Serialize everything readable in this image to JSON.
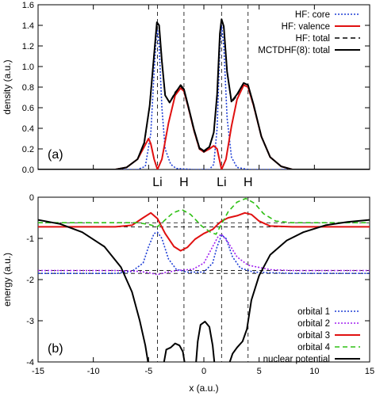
{
  "chart_data": [
    {
      "type": "line",
      "panel_label": "(a)",
      "xlabel": "",
      "ylabel": "density (a.u.)",
      "xlim": [
        -15,
        15
      ],
      "ylim": [
        0,
        1.6
      ],
      "yticks": [
        "0.0",
        "0.2",
        "0.4",
        "0.6",
        "0.8",
        "1.0",
        "1.2",
        "1.4",
        "1.6"
      ],
      "atom_labels": [
        {
          "x": -4.2,
          "text": "Li"
        },
        {
          "x": -1.8,
          "text": "H"
        },
        {
          "x": 1.6,
          "text": "Li"
        },
        {
          "x": 4.0,
          "text": "H"
        }
      ],
      "vlines": [
        -4.2,
        -1.8,
        1.6,
        4.0
      ],
      "legend_position": "top-right",
      "series": [
        {
          "name": "HF: core",
          "color": "#1f3fd6",
          "style": "dotted",
          "points": [
            [
              -15,
              0
            ],
            [
              -6,
              0
            ],
            [
              -5.3,
              0.03
            ],
            [
              -4.8,
              0.35
            ],
            [
              -4.5,
              0.95
            ],
            [
              -4.3,
              1.3
            ],
            [
              -4.2,
              1.35
            ],
            [
              -4.05,
              1.2
            ],
            [
              -3.8,
              0.6
            ],
            [
              -3.5,
              0.2
            ],
            [
              -3,
              0.05
            ],
            [
              -2.5,
              0.01
            ],
            [
              -1,
              0
            ],
            [
              0.5,
              0
            ],
            [
              0.9,
              0.05
            ],
            [
              1.2,
              0.4
            ],
            [
              1.45,
              1.2
            ],
            [
              1.6,
              1.4
            ],
            [
              1.8,
              1.2
            ],
            [
              2.1,
              0.5
            ],
            [
              2.5,
              0.12
            ],
            [
              3,
              0.02
            ],
            [
              4,
              0
            ],
            [
              15,
              0
            ]
          ]
        },
        {
          "name": "HF: valence",
          "color": "#e01010",
          "style": "solid",
          "points": [
            [
              -15,
              0
            ],
            [
              -8,
              0
            ],
            [
              -7,
              0.02
            ],
            [
              -6,
              0.1
            ],
            [
              -5.4,
              0.22
            ],
            [
              -5,
              0.3
            ],
            [
              -4.8,
              0.25
            ],
            [
              -4.5,
              0.1
            ],
            [
              -4.2,
              0
            ],
            [
              -3.8,
              0.1
            ],
            [
              -3.2,
              0.45
            ],
            [
              -2.6,
              0.72
            ],
            [
              -2.1,
              0.79
            ],
            [
              -1.8,
              0.76
            ],
            [
              -1.4,
              0.6
            ],
            [
              -0.9,
              0.38
            ],
            [
              -0.4,
              0.2
            ],
            [
              0,
              0.17
            ],
            [
              0.5,
              0.2
            ],
            [
              0.9,
              0.23
            ],
            [
              1.2,
              0.2
            ],
            [
              1.6,
              0
            ],
            [
              2,
              0.1
            ],
            [
              2.5,
              0.42
            ],
            [
              3,
              0.68
            ],
            [
              3.6,
              0.82
            ],
            [
              4,
              0.8
            ],
            [
              4.5,
              0.62
            ],
            [
              5.2,
              0.32
            ],
            [
              6,
              0.12
            ],
            [
              7,
              0.03
            ],
            [
              8,
              0
            ],
            [
              15,
              0
            ]
          ]
        },
        {
          "name": "HF: total",
          "color": "#000000",
          "style": "dashed",
          "points": [
            [
              -15,
              0
            ],
            [
              -8,
              0
            ],
            [
              -7,
              0.02
            ],
            [
              -6,
              0.1
            ],
            [
              -5.4,
              0.25
            ],
            [
              -4.9,
              0.62
            ],
            [
              -4.5,
              1.12
            ],
            [
              -4.25,
              1.42
            ],
            [
              -4.05,
              1.38
            ],
            [
              -3.8,
              1.05
            ],
            [
              -3.5,
              0.72
            ],
            [
              -3.1,
              0.65
            ],
            [
              -2.6,
              0.75
            ],
            [
              -2.1,
              0.81
            ],
            [
              -1.8,
              0.77
            ],
            [
              -1.4,
              0.6
            ],
            [
              -0.9,
              0.38
            ],
            [
              -0.4,
              0.2
            ],
            [
              0,
              0.17
            ],
            [
              0.5,
              0.22
            ],
            [
              0.9,
              0.35
            ],
            [
              1.2,
              0.72
            ],
            [
              1.45,
              1.3
            ],
            [
              1.6,
              1.45
            ],
            [
              1.8,
              1.38
            ],
            [
              2.1,
              0.95
            ],
            [
              2.5,
              0.65
            ],
            [
              3,
              0.72
            ],
            [
              3.6,
              0.84
            ],
            [
              4,
              0.82
            ],
            [
              4.5,
              0.62
            ],
            [
              5.2,
              0.32
            ],
            [
              6,
              0.12
            ],
            [
              7,
              0.03
            ],
            [
              8,
              0
            ],
            [
              15,
              0
            ]
          ]
        },
        {
          "name": "MCTDHF(8): total",
          "color": "#000000",
          "style": "solid",
          "points": [
            [
              -15,
              0
            ],
            [
              -8,
              0
            ],
            [
              -7,
              0.02
            ],
            [
              -6,
              0.1
            ],
            [
              -5.4,
              0.26
            ],
            [
              -4.9,
              0.62
            ],
            [
              -4.5,
              1.12
            ],
            [
              -4.25,
              1.43
            ],
            [
              -4.05,
              1.4
            ],
            [
              -3.8,
              1.05
            ],
            [
              -3.5,
              0.72
            ],
            [
              -3.1,
              0.65
            ],
            [
              -2.6,
              0.74
            ],
            [
              -2.1,
              0.82
            ],
            [
              -1.8,
              0.78
            ],
            [
              -1.4,
              0.61
            ],
            [
              -0.9,
              0.39
            ],
            [
              -0.4,
              0.21
            ],
            [
              0,
              0.18
            ],
            [
              0.5,
              0.22
            ],
            [
              0.9,
              0.36
            ],
            [
              1.2,
              0.73
            ],
            [
              1.45,
              1.32
            ],
            [
              1.6,
              1.46
            ],
            [
              1.8,
              1.39
            ],
            [
              2.1,
              0.95
            ],
            [
              2.5,
              0.66
            ],
            [
              3,
              0.73
            ],
            [
              3.6,
              0.84
            ],
            [
              4,
              0.82
            ],
            [
              4.5,
              0.63
            ],
            [
              5.2,
              0.32
            ],
            [
              6,
              0.12
            ],
            [
              7,
              0.03
            ],
            [
              8,
              0
            ],
            [
              15,
              0
            ]
          ]
        }
      ]
    },
    {
      "type": "line",
      "panel_label": "(b)",
      "xlabel": "x (a.u.)",
      "ylabel": "energy (a.u.)",
      "xlim": [
        -15,
        15
      ],
      "ylim": [
        -4,
        0
      ],
      "xticks": [
        "-15",
        "-10",
        "-5",
        "0",
        "5",
        "10",
        "15"
      ],
      "yticks": [
        "-4",
        "-3",
        "-2",
        "-1",
        "0"
      ],
      "vlines": [
        -4.2,
        -1.8,
        1.6,
        4.0
      ],
      "hlines": [
        -0.62,
        -0.72,
        -1.78,
        -1.85
      ],
      "legend_position": "bottom-right",
      "series": [
        {
          "name": "orbital 1",
          "color": "#1f3fd6",
          "style": "dotted",
          "points": [
            [
              -15,
              -1.85
            ],
            [
              -8,
              -1.85
            ],
            [
              -6.5,
              -1.8
            ],
            [
              -5.5,
              -1.6
            ],
            [
              -5,
              -1.2
            ],
            [
              -4.5,
              -0.88
            ],
            [
              -4.2,
              -0.85
            ],
            [
              -3.8,
              -1
            ],
            [
              -3.2,
              -1.5
            ],
            [
              -2.5,
              -1.75
            ],
            [
              -1.5,
              -1.82
            ],
            [
              0,
              -1.82
            ],
            [
              0.8,
              -1.6
            ],
            [
              1.2,
              -1.2
            ],
            [
              1.6,
              -0.92
            ],
            [
              2,
              -1
            ],
            [
              2.6,
              -1.45
            ],
            [
              3.3,
              -1.72
            ],
            [
              4.5,
              -1.82
            ],
            [
              8,
              -1.85
            ],
            [
              15,
              -1.85
            ]
          ]
        },
        {
          "name": "orbital 2",
          "color": "#a020f0",
          "style": "dotted",
          "points": [
            [
              -15,
              -1.78
            ],
            [
              -8,
              -1.78
            ],
            [
              -6,
              -1.8
            ],
            [
              -5,
              -1.83
            ],
            [
              -4.2,
              -1.88
            ],
            [
              -3.5,
              -1.83
            ],
            [
              -2.5,
              -1.78
            ],
            [
              -1,
              -1.75
            ],
            [
              0,
              -1.6
            ],
            [
              0.8,
              -1.2
            ],
            [
              1.3,
              -0.95
            ],
            [
              1.6,
              -0.9
            ],
            [
              2.2,
              -1.1
            ],
            [
              3,
              -1.45
            ],
            [
              4,
              -1.65
            ],
            [
              6,
              -1.76
            ],
            [
              8,
              -1.78
            ],
            [
              15,
              -1.78
            ]
          ]
        },
        {
          "name": "orbital 3",
          "color": "#e01010",
          "style": "solid",
          "points": [
            [
              -15,
              -0.72
            ],
            [
              -8,
              -0.72
            ],
            [
              -6.5,
              -0.68
            ],
            [
              -5.5,
              -0.5
            ],
            [
              -4.8,
              -0.38
            ],
            [
              -4.2,
              -0.52
            ],
            [
              -3.5,
              -0.88
            ],
            [
              -2.7,
              -1.2
            ],
            [
              -2.1,
              -1.3
            ],
            [
              -1.5,
              -1.22
            ],
            [
              -0.8,
              -1.02
            ],
            [
              0,
              -0.88
            ],
            [
              0.8,
              -0.78
            ],
            [
              1.3,
              -0.65
            ],
            [
              1.6,
              -0.58
            ],
            [
              2.2,
              -0.5
            ],
            [
              3,
              -0.45
            ],
            [
              3.7,
              -0.38
            ],
            [
              4.3,
              -0.42
            ],
            [
              5,
              -0.58
            ],
            [
              6,
              -0.7
            ],
            [
              8,
              -0.72
            ],
            [
              15,
              -0.72
            ]
          ]
        },
        {
          "name": "orbital 4",
          "color": "#2ec014",
          "style": "dashed",
          "points": [
            [
              -15,
              -0.62
            ],
            [
              -8,
              -0.62
            ],
            [
              -6,
              -0.62
            ],
            [
              -5,
              -0.66
            ],
            [
              -4.2,
              -0.72
            ],
            [
              -3.5,
              -0.55
            ],
            [
              -2.8,
              -0.38
            ],
            [
              -2,
              -0.3
            ],
            [
              -1.2,
              -0.42
            ],
            [
              -0.2,
              -0.7
            ],
            [
              0.6,
              -0.85
            ],
            [
              1.1,
              -0.9
            ],
            [
              1.6,
              -0.65
            ],
            [
              2.2,
              -0.35
            ],
            [
              3,
              -0.12
            ],
            [
              3.8,
              -0.03
            ],
            [
              4.6,
              -0.15
            ],
            [
              5.4,
              -0.4
            ],
            [
              6.5,
              -0.58
            ],
            [
              8,
              -0.62
            ],
            [
              15,
              -0.62
            ]
          ]
        },
        {
          "name": "nuclear potential",
          "color": "#000000",
          "style": "solid",
          "segments": [
            [
              [
                -15,
                -0.55
              ],
              [
                -13,
                -0.65
              ],
              [
                -11,
                -0.85
              ],
              [
                -9,
                -1.2
              ],
              [
                -7.5,
                -1.7
              ],
              [
                -6.5,
                -2.3
              ],
              [
                -5.8,
                -3
              ],
              [
                -5.3,
                -3.6
              ],
              [
                -5.05,
                -4
              ]
            ],
            [
              [
                -3.6,
                -4
              ],
              [
                -3.4,
                -3.7
              ],
              [
                -3.0,
                -3.65
              ],
              [
                -2.6,
                -3.55
              ],
              [
                -2.2,
                -3.6
              ],
              [
                -1.9,
                -3.75
              ],
              [
                -1.75,
                -4
              ]
            ],
            [
              [
                -0.7,
                -4
              ],
              [
                -0.55,
                -3.5
              ],
              [
                -0.3,
                -3.1
              ],
              [
                0.1,
                -3.02
              ],
              [
                0.5,
                -3.15
              ],
              [
                0.8,
                -3.6
              ],
              [
                0.95,
                -4
              ]
            ],
            [
              [
                2.35,
                -4
              ],
              [
                2.6,
                -3.8
              ],
              [
                3.0,
                -3.65
              ],
              [
                3.5,
                -3.5
              ],
              [
                3.9,
                -3.2
              ],
              [
                4.3,
                -2.5
              ],
              [
                5,
                -1.9
              ],
              [
                6,
                -1.4
              ],
              [
                7.5,
                -1.05
              ],
              [
                9,
                -0.85
              ],
              [
                11,
                -0.68
              ],
              [
                13,
                -0.6
              ],
              [
                15,
                -0.55
              ]
            ]
          ]
        }
      ]
    }
  ]
}
